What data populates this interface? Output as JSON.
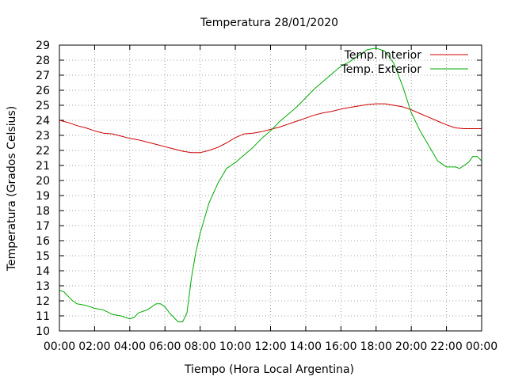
{
  "chart_data": {
    "type": "line",
    "title": "Temperatura 28/01/2020",
    "xlabel": "Tiempo (Hora Local Argentina)",
    "ylabel": "Temperatura (Grados Celsius)",
    "xlim": [
      0,
      24
    ],
    "ylim": [
      10,
      29
    ],
    "grid": true,
    "legend_position": "top-right",
    "x_tick_labels": [
      "00:00",
      "02:00",
      "04:00",
      "06:00",
      "08:00",
      "10:00",
      "12:00",
      "14:00",
      "16:00",
      "18:00",
      "20:00",
      "22:00",
      "00:00"
    ],
    "y_tick_labels": [
      "10",
      "11",
      "12",
      "13",
      "14",
      "15",
      "16",
      "17",
      "18",
      "19",
      "20",
      "21",
      "22",
      "23",
      "24",
      "25",
      "26",
      "27",
      "28",
      "29"
    ],
    "series": [
      {
        "name": "Temp. Interior",
        "color": "#cc0000",
        "x": [
          0,
          0.5,
          1,
          1.5,
          2,
          2.5,
          3,
          3.5,
          4,
          4.5,
          5,
          5.5,
          6,
          6.5,
          7,
          7.5,
          8,
          8.5,
          9,
          9.5,
          10,
          10.5,
          11,
          11.5,
          12,
          12.5,
          13,
          13.5,
          14,
          14.5,
          15,
          15.5,
          16,
          16.5,
          17,
          17.5,
          18,
          18.5,
          19,
          19.5,
          20,
          20.5,
          21,
          21.5,
          22,
          22.5,
          23,
          23.5,
          24
        ],
        "y": [
          24.0,
          23.85,
          23.65,
          23.5,
          23.3,
          23.15,
          23.1,
          22.95,
          22.8,
          22.7,
          22.55,
          22.4,
          22.25,
          22.1,
          21.95,
          21.85,
          21.85,
          22.0,
          22.2,
          22.5,
          22.85,
          23.1,
          23.15,
          23.25,
          23.4,
          23.55,
          23.75,
          23.95,
          24.15,
          24.35,
          24.5,
          24.6,
          24.75,
          24.85,
          24.95,
          25.05,
          25.1,
          25.1,
          25.0,
          24.9,
          24.7,
          24.45,
          24.2,
          23.95,
          23.7,
          23.5,
          23.45,
          23.45,
          23.45
        ]
      },
      {
        "name": "Temp. Exterior",
        "color": "#00aa00",
        "x": [
          0,
          0.25,
          0.5,
          0.75,
          1,
          1.5,
          2,
          2.5,
          3,
          3.5,
          4,
          4.25,
          4.5,
          5,
          5.5,
          5.75,
          6,
          6.25,
          6.5,
          6.75,
          7,
          7.25,
          7.5,
          7.75,
          8,
          8.5,
          9,
          9.5,
          10,
          10.5,
          11,
          11.5,
          12,
          12.5,
          13,
          13.5,
          14,
          14.5,
          15,
          15.5,
          16,
          16.5,
          17,
          17.5,
          18,
          18.5,
          19,
          19.5,
          20,
          20.5,
          21,
          21.25,
          21.5,
          22,
          22.5,
          22.75,
          23,
          23.25,
          23.5,
          23.75,
          24
        ],
        "y": [
          12.7,
          12.6,
          12.3,
          12.0,
          11.8,
          11.7,
          11.5,
          11.4,
          11.1,
          11.0,
          10.8,
          10.9,
          11.2,
          11.4,
          11.8,
          11.8,
          11.6,
          11.2,
          10.9,
          10.6,
          10.6,
          11.2,
          13.5,
          15.2,
          16.5,
          18.5,
          19.8,
          20.8,
          21.2,
          21.7,
          22.2,
          22.8,
          23.3,
          23.9,
          24.4,
          24.9,
          25.5,
          26.1,
          26.6,
          27.1,
          27.6,
          27.9,
          28.3,
          28.7,
          28.8,
          28.6,
          27.8,
          26.3,
          24.5,
          23.3,
          22.3,
          21.8,
          21.3,
          20.9,
          20.9,
          20.8,
          21.0,
          21.2,
          21.6,
          21.6,
          21.3
        ]
      }
    ]
  }
}
